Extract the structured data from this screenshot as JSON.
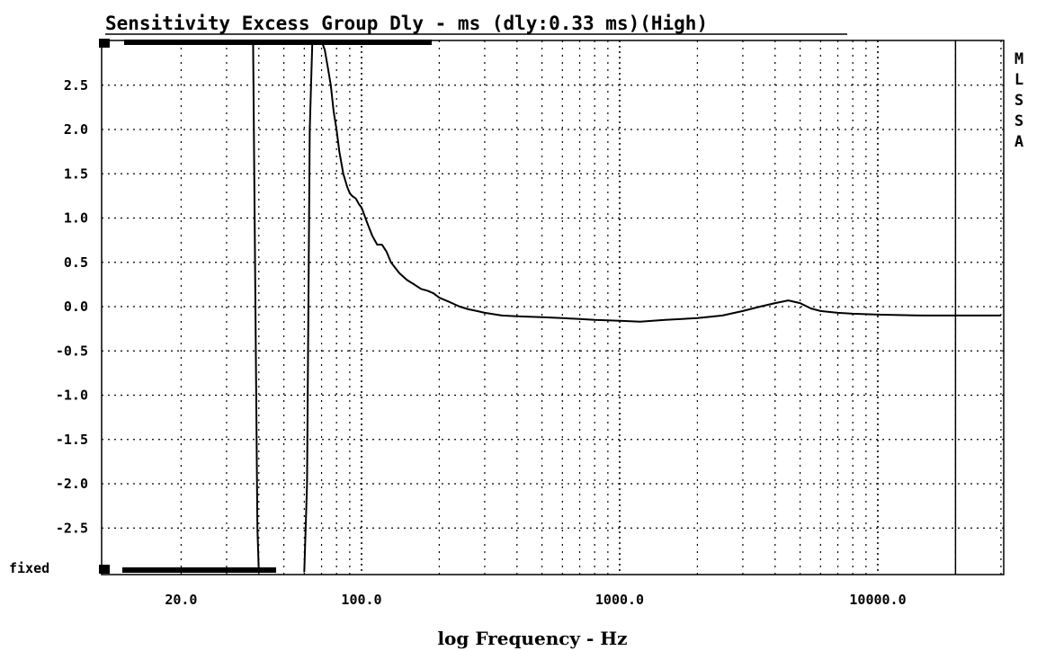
{
  "chart_data": {
    "type": "line",
    "title": "Sensitivity Excess Group Dly - ms (dly:0.33 ms)(High)",
    "xlabel": "log Frequency - Hz",
    "ylabel": "",
    "x_scale": "log",
    "xlim": [
      10,
      40000
    ],
    "ylim": [
      -3.0,
      3.0
    ],
    "y_ticks": [
      "2.5",
      "2.0",
      "1.5",
      "1.0",
      "0.5",
      "0.0",
      "-0.5",
      "-1.0",
      "-1.5",
      "-2.0",
      "-2.5"
    ],
    "y_tick_values": [
      2.5,
      2.0,
      1.5,
      1.0,
      0.5,
      0.0,
      -0.5,
      -1.0,
      -1.5,
      -2.0,
      -2.5
    ],
    "x_ticks": [
      "20.0",
      "100.0",
      "1000.0",
      "10000.0"
    ],
    "x_tick_values": [
      20,
      100,
      1000,
      10000
    ],
    "y_bottom_label": "fixed",
    "side_label": [
      "M",
      "L",
      "S",
      "S",
      "A"
    ],
    "grid": true,
    "cursor_line_x": 20000,
    "series": [
      {
        "values_x": [
          85,
          88,
          90,
          92,
          95,
          98,
          100,
          105,
          110,
          115,
          120,
          125,
          130,
          140,
          150,
          160,
          170,
          180,
          190,
          200,
          220,
          240,
          260,
          280,
          300,
          350,
          400,
          500,
          600,
          700,
          800,
          1000,
          1200,
          1500,
          2000,
          2500,
          3000,
          3500,
          4000,
          4500,
          5000,
          5500,
          6000,
          7000,
          8000,
          10000,
          15000,
          20000,
          30000
        ],
        "values_y": [
          1.5,
          1.35,
          1.28,
          1.25,
          1.22,
          1.15,
          1.12,
          0.95,
          0.8,
          0.7,
          0.7,
          0.62,
          0.5,
          0.38,
          0.3,
          0.25,
          0.2,
          0.18,
          0.15,
          0.1,
          0.05,
          0.0,
          -0.03,
          -0.05,
          -0.07,
          -0.1,
          -0.11,
          -0.12,
          -0.13,
          -0.14,
          -0.15,
          -0.16,
          -0.17,
          -0.15,
          -0.13,
          -0.1,
          -0.05,
          0.0,
          0.04,
          0.07,
          0.04,
          -0.02,
          -0.05,
          -0.07,
          -0.08,
          -0.09,
          -0.1,
          -0.1,
          -0.1
        ]
      },
      {
        "values_x": [
          67,
          70,
          72,
          74,
          76,
          78,
          80,
          82,
          85
        ],
        "values_y": [
          3.0,
          3.0,
          2.9,
          2.7,
          2.5,
          2.2,
          2.0,
          1.75,
          1.5
        ]
      },
      {
        "values_x": [
          38,
          38.8,
          39.5,
          40
        ],
        "values_y": [
          3.0,
          0.0,
          -2.5,
          -3.0
        ]
      },
      {
        "values_x": [
          60,
          61.5,
          63,
          64.5
        ],
        "values_y": [
          -3.0,
          -2.0,
          2.0,
          3.0
        ]
      }
    ]
  }
}
